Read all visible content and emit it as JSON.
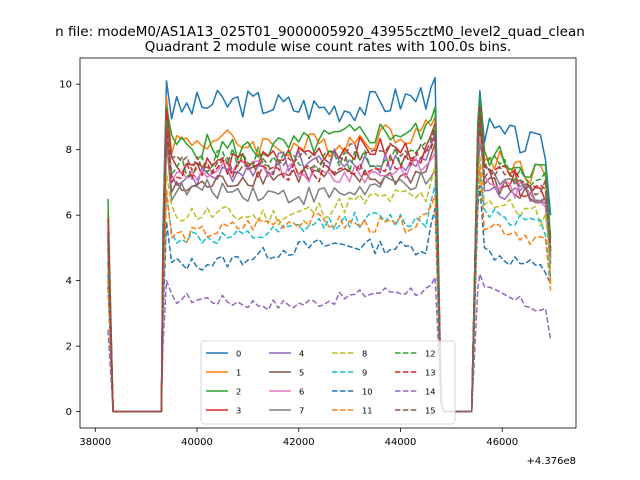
{
  "chart_data": {
    "type": "line",
    "suptitle": "n file: modeM0/AS1A13_025T01_9000005920_43955cztM0_level2_quad_clean",
    "title": "Quadrant 2 module wise count rates with 100.0s bins.",
    "xlabel": "",
    "ylabel": "",
    "x_offset_label": "+4.376e8",
    "xlim": [
      37700,
      47450
    ],
    "ylim": [
      -0.5,
      10.8
    ],
    "x_ticks": [
      38000,
      40000,
      42000,
      44000,
      46000
    ],
    "x_tick_labels": [
      "38000",
      "40000",
      "42000",
      "44000",
      "46000"
    ],
    "y_ticks": [
      0,
      2,
      4,
      6,
      8,
      10
    ],
    "y_tick_labels": [
      "0",
      "2",
      "4",
      "6",
      "8",
      "10"
    ],
    "grid": false,
    "legend_position": "lower-center",
    "segments": [
      {
        "x_start": 38250,
        "x_end": 38250,
        "note": "spike"
      },
      {
        "x_start": 39300,
        "x_end": 44700
      },
      {
        "x_start": 45550,
        "x_end": 46950
      }
    ],
    "series": [
      {
        "name": "0",
        "color": "#1f77b4",
        "dash": "solid",
        "start": 4.2,
        "level1": 9.2,
        "peak1": 10.1,
        "end1": 10.2,
        "level2": 8.6,
        "peak2": 9.8,
        "tail": 6.0
      },
      {
        "name": "1",
        "color": "#ff7f0e",
        "dash": "solid",
        "start": 6.1,
        "level1": 8.1,
        "peak1": 9.6,
        "end1": 9.0,
        "level2": 7.8,
        "peak2": 9.5,
        "tail": 3.9
      },
      {
        "name": "2",
        "color": "#2ca02c",
        "dash": "solid",
        "start": 6.5,
        "level1": 8.0,
        "peak1": 9.3,
        "end1": 9.3,
        "level2": 7.9,
        "peak2": 9.6,
        "tail": 5.3
      },
      {
        "name": "3",
        "color": "#d62728",
        "dash": "solid",
        "start": 5.9,
        "level1": 7.6,
        "peak1": 9.2,
        "end1": 8.8,
        "level2": 7.3,
        "peak2": 9.3,
        "tail": 4.9
      },
      {
        "name": "4",
        "color": "#9467bd",
        "dash": "solid",
        "start": 5.2,
        "level1": 7.3,
        "peak1": 8.9,
        "end1": 8.5,
        "level2": 7.0,
        "peak2": 9.0,
        "tail": 4.8
      },
      {
        "name": "5",
        "color": "#8c564b",
        "dash": "solid",
        "start": 5.0,
        "level1": 6.9,
        "peak1": 8.5,
        "end1": 8.2,
        "level2": 7.0,
        "peak2": 8.6,
        "tail": 4.7
      },
      {
        "name": "6",
        "color": "#e377c2",
        "dash": "solid",
        "start": 4.8,
        "level1": 7.2,
        "peak1": 8.7,
        "end1": 7.9,
        "level2": 7.1,
        "peak2": 8.4,
        "tail": 4.6
      },
      {
        "name": "7",
        "color": "#7f7f7f",
        "dash": "solid",
        "start": 4.6,
        "level1": 6.6,
        "peak1": 8.3,
        "end1": 7.4,
        "level2": 7.2,
        "peak2": 8.2,
        "tail": 4.5
      },
      {
        "name": "8",
        "color": "#bcbd22",
        "dash": "dashed",
        "start": 4.4,
        "level1": 5.9,
        "peak1": 7.3,
        "end1": 7.5,
        "level2": 6.5,
        "peak2": 7.8,
        "tail": 4.3
      },
      {
        "name": "9",
        "color": "#17becf",
        "dash": "dashed",
        "start": 4.2,
        "level1": 5.3,
        "peak1": 6.6,
        "end1": 6.9,
        "level2": 6.2,
        "peak2": 7.3,
        "tail": 4.1
      },
      {
        "name": "10",
        "color": "#1f77b4",
        "dash": "dashed",
        "start": 3.8,
        "level1": 4.6,
        "peak1": 5.8,
        "end1": 6.2,
        "level2": 4.9,
        "peak2": 6.9,
        "tail": 3.9
      },
      {
        "name": "11",
        "color": "#ff7f0e",
        "dash": "dashed",
        "start": 4.0,
        "level1": 5.5,
        "peak1": 6.8,
        "end1": 6.6,
        "level2": 5.8,
        "peak2": 7.5,
        "tail": 3.7
      },
      {
        "name": "12",
        "color": "#2ca02c",
        "dash": "dashed",
        "start": 5.3,
        "level1": 7.5,
        "peak1": 8.8,
        "end1": 8.7,
        "level2": 7.6,
        "peak2": 9.2,
        "tail": 5.0
      },
      {
        "name": "13",
        "color": "#d62728",
        "dash": "dashed",
        "start": 5.5,
        "level1": 7.2,
        "peak1": 8.6,
        "end1": 8.4,
        "level2": 7.5,
        "peak2": 9.1,
        "tail": 5.1
      },
      {
        "name": "14",
        "color": "#9467bd",
        "dash": "dashed",
        "start": 2.5,
        "level1": 3.3,
        "peak1": 4.0,
        "end1": 4.1,
        "level2": 3.7,
        "peak2": 4.2,
        "tail": 2.2
      },
      {
        "name": "15",
        "color": "#8c564b",
        "dash": "dashed",
        "start": 5.4,
        "level1": 7.5,
        "peak1": 8.9,
        "end1": 8.6,
        "level2": 7.4,
        "peak2": 9.0,
        "tail": 4.9
      }
    ]
  }
}
